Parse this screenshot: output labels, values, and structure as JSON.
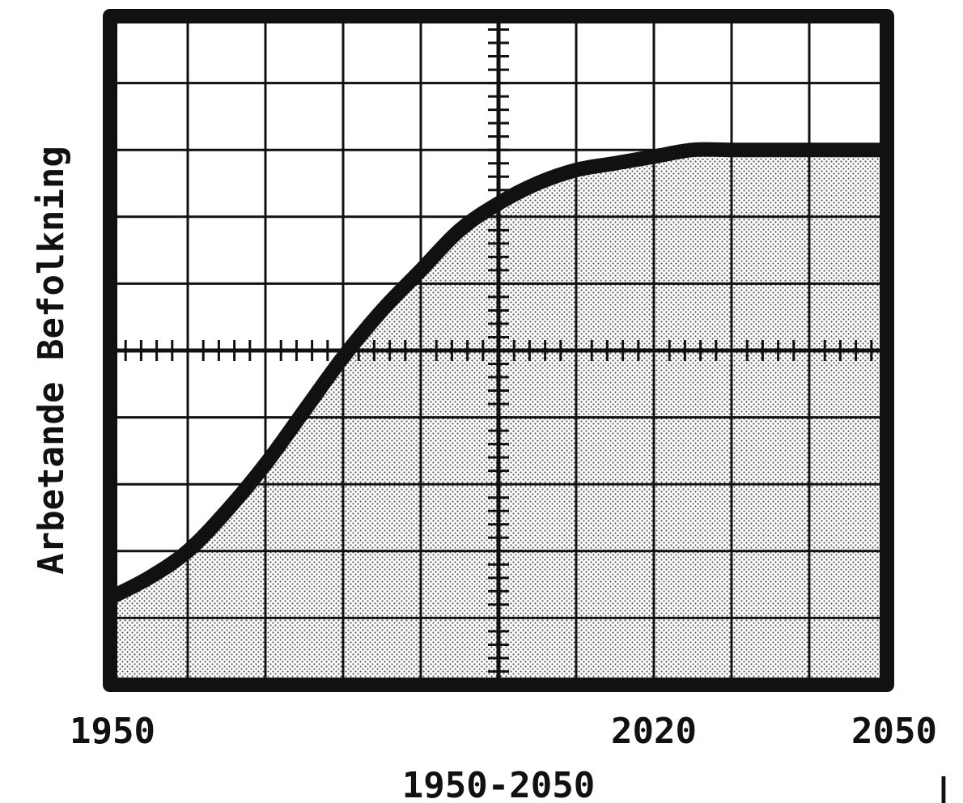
{
  "chart_data": {
    "type": "area",
    "title": "",
    "xlabel": "1950-2050",
    "ylabel": "Arbetande Befolkning",
    "xlim": [
      1950,
      2050
    ],
    "ylim": [
      0,
      10
    ],
    "x_ticks": [
      1950,
      2020,
      2050
    ],
    "grid": true,
    "fill_pattern": "dotted",
    "colors": {
      "line": "#111111",
      "grid": "#111111",
      "fill_dot": "#555555",
      "background": "#ffffff"
    },
    "series": [
      {
        "x": [
          1950,
          1955,
          1960,
          1965,
          1970,
          1975,
          1980,
          1985,
          1990,
          1995,
          2000,
          2005,
          2010,
          2015,
          2020,
          2025,
          2030,
          2035,
          2040,
          2045,
          2050
        ],
        "y": [
          1.3,
          1.6,
          2.0,
          2.6,
          3.3,
          4.1,
          4.9,
          5.6,
          6.2,
          6.8,
          7.2,
          7.5,
          7.7,
          7.8,
          7.9,
          8.0,
          8.0,
          8.0,
          8.0,
          8.0,
          8.0
        ]
      }
    ],
    "cursor_marker": "|"
  }
}
